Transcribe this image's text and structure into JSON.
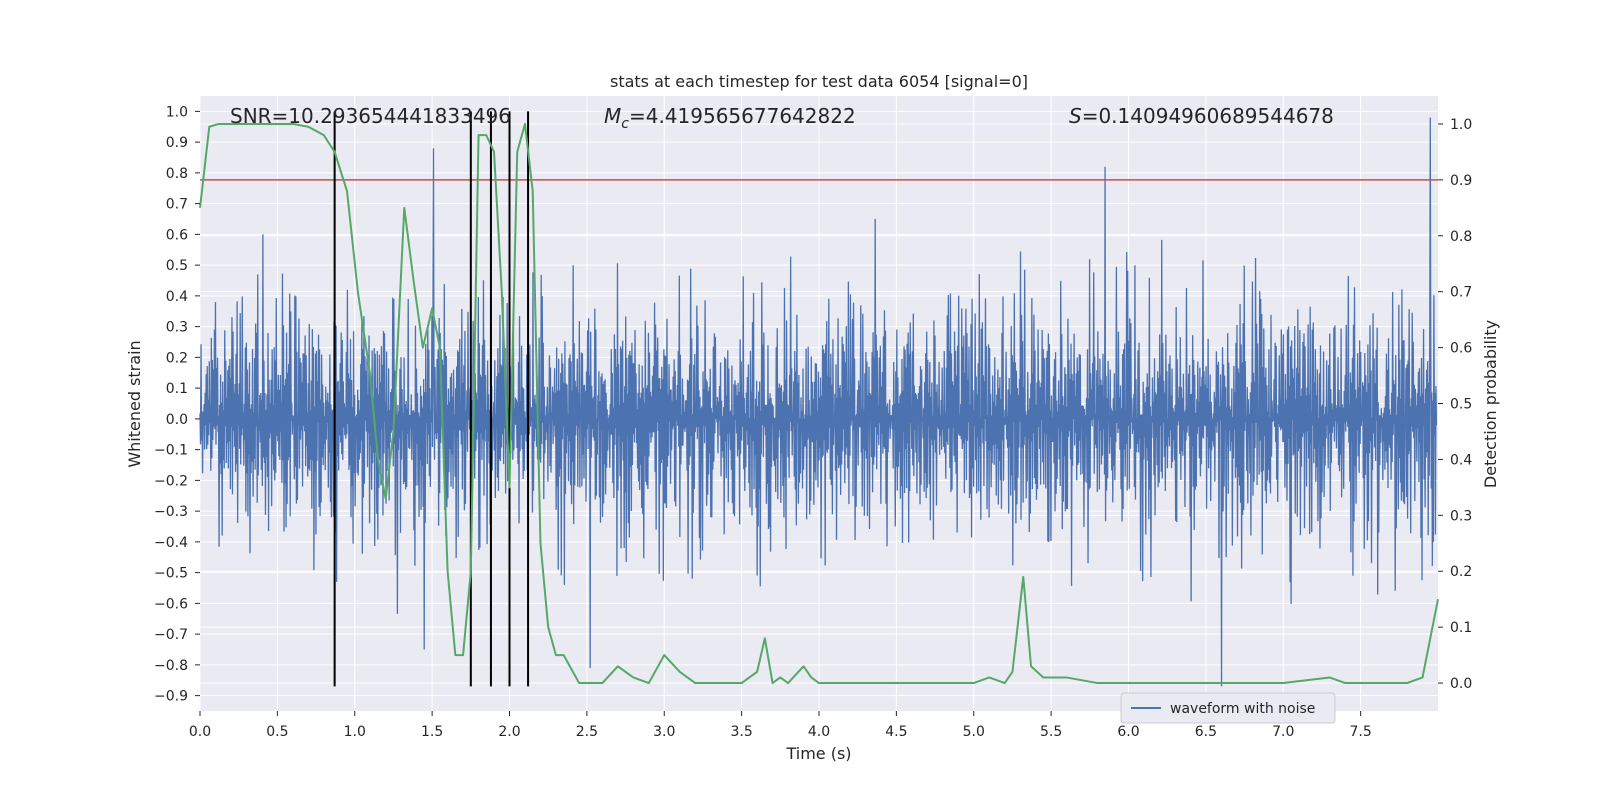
{
  "chart_data": {
    "type": "line",
    "title": "stats at each timestep for test data 6054 [signal=0]",
    "xlabel": "Time (s)",
    "ylabel": "Whitened strain",
    "ylabel_right": "Detection probability",
    "xlim": [
      0.0,
      8.0
    ],
    "ylim": [
      -0.95,
      1.05
    ],
    "ylim_right": [
      -0.05,
      1.05
    ],
    "x_ticks": [
      "0.0",
      "0.5",
      "1.0",
      "1.5",
      "2.0",
      "2.5",
      "3.0",
      "3.5",
      "4.0",
      "4.5",
      "5.0",
      "5.5",
      "6.0",
      "6.5",
      "7.0",
      "7.5"
    ],
    "y_ticks": [
      "1.0",
      "0.9",
      "0.8",
      "0.7",
      "0.6",
      "0.5",
      "0.4",
      "0.3",
      "0.2",
      "0.1",
      "0.0",
      "−0.1",
      "−0.2",
      "−0.3",
      "−0.4",
      "−0.5",
      "−0.6",
      "−0.7",
      "−0.8",
      "−0.9"
    ],
    "y_ticks_right": [
      "1.0",
      "0.9",
      "0.8",
      "0.7",
      "0.6",
      "0.5",
      "0.4",
      "0.3",
      "0.2",
      "0.1",
      "0.0"
    ],
    "grid": true,
    "legend": {
      "position": "lower-right",
      "entries": [
        "waveform with noise"
      ]
    },
    "annotations": {
      "snr": "SNR=10.293654441833496",
      "mc_prefix": "M",
      "mc_sub": "c",
      "mc_value": "=4.419565677642822",
      "s_prefix": "S",
      "s_value": "=0.14094960689544678"
    },
    "colors": {
      "waveform": "#4c72b0",
      "probability": "#55a868",
      "threshold": "#c44e52",
      "events": "#000000",
      "plot_bg": "#eaeaf2",
      "grid": "#ffffff"
    },
    "threshold_probability": 0.9,
    "event_lines": [
      {
        "t": 0.87,
        "y_top": 1.0,
        "y_bottom": -0.87
      },
      {
        "t": 1.75,
        "y_top": 1.0,
        "y_bottom": -0.87
      },
      {
        "t": 1.88,
        "y_top": 1.0,
        "y_bottom": -0.87
      },
      {
        "t": 2.0,
        "y_top": 1.0,
        "y_bottom": -0.87
      },
      {
        "t": 2.12,
        "y_top": 1.0,
        "y_bottom": -0.87
      }
    ],
    "series": [
      {
        "name": "waveform with noise",
        "kind": "noise",
        "t_range": [
          0.0,
          7.99
        ],
        "amplitude_envelope": {
          "positive": 0.5,
          "negative": -0.5
        },
        "notable_spikes": [
          {
            "t": 1.51,
            "v": 0.88
          },
          {
            "t": 5.85,
            "v": 0.82
          },
          {
            "t": 7.95,
            "v": 0.98
          },
          {
            "t": 6.6,
            "v": -0.87
          },
          {
            "t": 2.52,
            "v": -0.81
          },
          {
            "t": 1.45,
            "v": -0.75
          }
        ]
      },
      {
        "kind": "probability",
        "axis": "right",
        "x": [
          0.0,
          0.06,
          0.12,
          0.3,
          0.45,
          0.6,
          0.7,
          0.8,
          0.87,
          0.95,
          1.02,
          1.1,
          1.15,
          1.2,
          1.25,
          1.32,
          1.38,
          1.44,
          1.5,
          1.55,
          1.6,
          1.65,
          1.7,
          1.75,
          1.8,
          1.85,
          1.9,
          1.95,
          2.0,
          2.05,
          2.1,
          2.15,
          2.2,
          2.25,
          2.3,
          2.35,
          2.45,
          2.5,
          2.6,
          2.7,
          2.8,
          2.9,
          3.0,
          3.1,
          3.2,
          3.3,
          3.5,
          3.6,
          3.65,
          3.7,
          3.75,
          3.8,
          3.9,
          3.95,
          4.0,
          4.1,
          4.3,
          4.5,
          5.0,
          5.1,
          5.2,
          5.25,
          5.32,
          5.37,
          5.45,
          5.6,
          5.8,
          6.0,
          6.6,
          7.0,
          7.3,
          7.4,
          7.6,
          7.8,
          7.9,
          8.0
        ],
        "y": [
          0.85,
          0.995,
          1.0,
          1.0,
          1.0,
          1.0,
          0.995,
          0.98,
          0.95,
          0.88,
          0.7,
          0.55,
          0.4,
          0.33,
          0.45,
          0.85,
          0.72,
          0.6,
          0.67,
          0.6,
          0.2,
          0.05,
          0.05,
          0.2,
          0.98,
          0.98,
          0.95,
          0.7,
          0.35,
          0.95,
          1.0,
          0.88,
          0.25,
          0.1,
          0.05,
          0.05,
          0.0,
          0.0,
          0.0,
          0.03,
          0.01,
          0.0,
          0.05,
          0.02,
          0.0,
          0.0,
          0.0,
          0.02,
          0.08,
          0.0,
          0.01,
          0.0,
          0.03,
          0.01,
          0.0,
          0.0,
          0.0,
          0.0,
          0.0,
          0.01,
          0.0,
          0.02,
          0.19,
          0.03,
          0.01,
          0.01,
          0.0,
          0.0,
          0.0,
          0.0,
          0.01,
          0.0,
          0.0,
          0.0,
          0.01,
          0.15
        ]
      }
    ]
  }
}
